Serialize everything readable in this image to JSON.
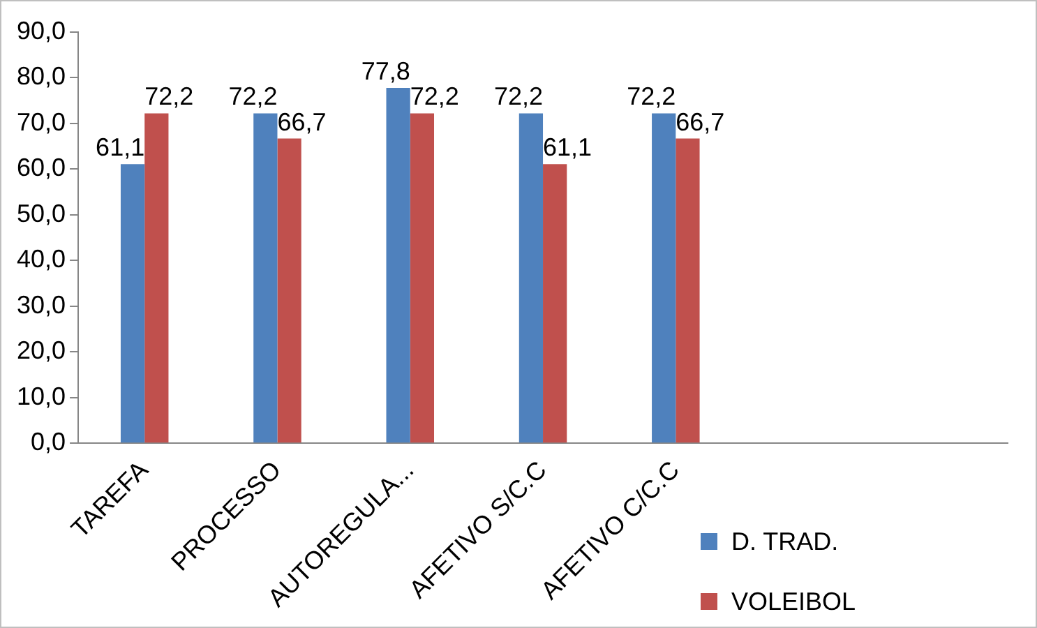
{
  "chart_data": {
    "type": "bar",
    "categories": [
      "TAREFA",
      "PROCESSO",
      "AUTOREGULA...",
      "AFETIVO S/C.C",
      "AFETIVO C/C.C",
      null,
      null
    ],
    "series": [
      {
        "name": "D. TRAD.",
        "color": "#4f81bd",
        "values": [
          61.1,
          72.2,
          77.8,
          72.2,
          72.2,
          null,
          null
        ],
        "value_labels": [
          "61,1",
          "72,2",
          "77,8",
          "72,2",
          "72,2",
          null,
          null
        ]
      },
      {
        "name": "VOLEIBOL",
        "color": "#c0504d",
        "values": [
          72.2,
          66.7,
          72.2,
          61.1,
          66.7,
          null,
          null
        ],
        "value_labels": [
          "72,2",
          "66,7",
          "72,2",
          "61,1",
          "66,7",
          null,
          null
        ]
      }
    ],
    "ylim": [
      0,
      90
    ],
    "yticks": [
      {
        "value": 0,
        "label": "0,0"
      },
      {
        "value": 10,
        "label": "10,0"
      },
      {
        "value": 20,
        "label": "20,0"
      },
      {
        "value": 30,
        "label": "30,0"
      },
      {
        "value": 40,
        "label": "40,0"
      },
      {
        "value": 50,
        "label": "50,0"
      },
      {
        "value": 60,
        "label": "60,0"
      },
      {
        "value": 70,
        "label": "70,0"
      },
      {
        "value": 80,
        "label": "80,0"
      },
      {
        "value": 90,
        "label": "90,0"
      }
    ],
    "grid": false,
    "legend": "bottom right"
  }
}
